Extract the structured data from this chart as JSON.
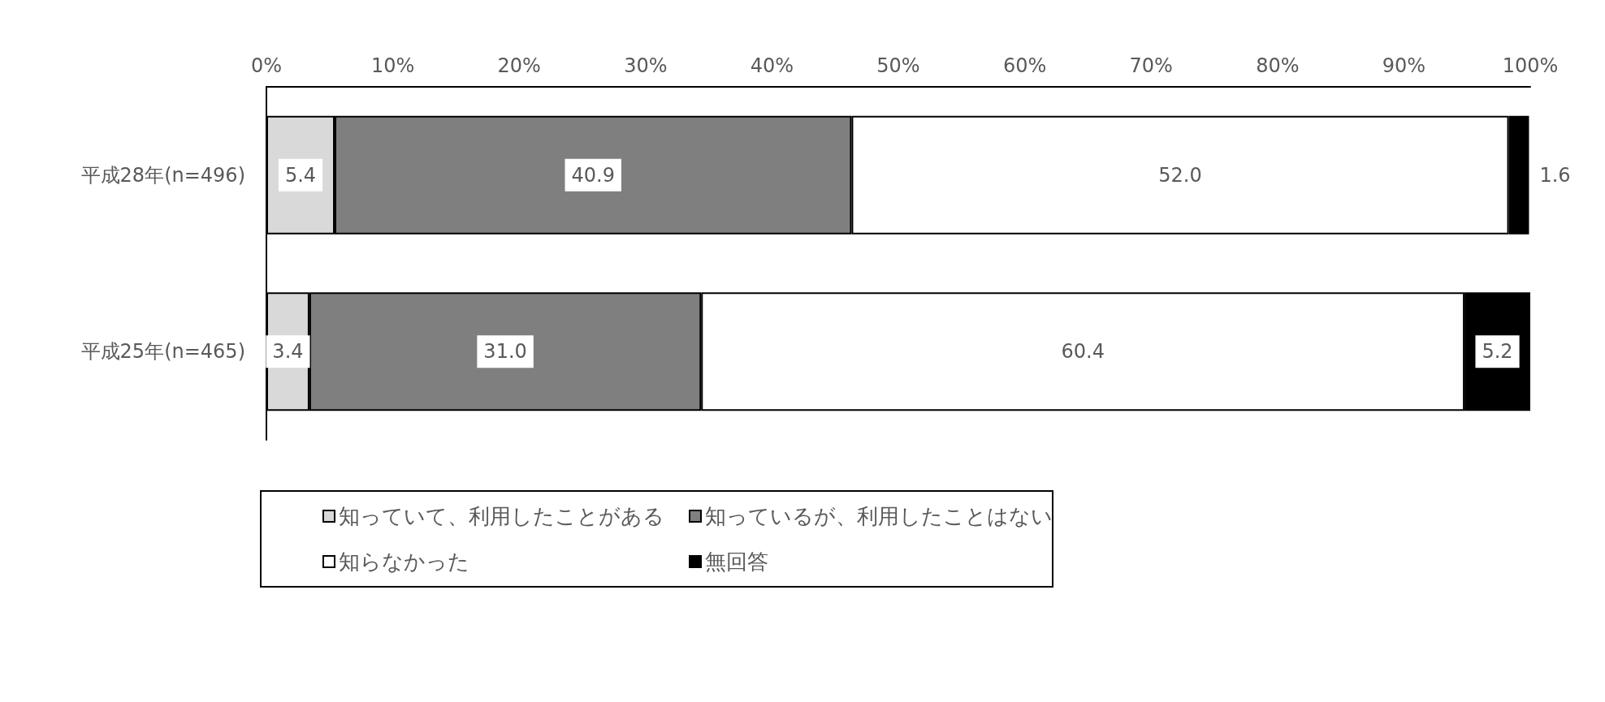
{
  "chart_data": {
    "type": "bar",
    "orientation": "horizontal",
    "stacked": true,
    "grid": false,
    "legend": "bottom",
    "categories": [
      "平成28年(n=496)",
      "平成25年(n=465)"
    ],
    "series": [
      {
        "name": "知っていて、利用したことがある",
        "color": "#d9d9d9",
        "values": [
          5.4,
          3.4
        ],
        "value_labels": [
          "5.4",
          "3.4"
        ]
      },
      {
        "name": "知っているが、利用したことはない",
        "color": "#7f7f7f",
        "values": [
          40.9,
          31.0
        ],
        "value_labels": [
          "40.9",
          "31.0"
        ]
      },
      {
        "name": "知らなかった",
        "color": "#ffffff",
        "values": [
          52.0,
          60.4
        ],
        "value_labels": [
          "52.0",
          "60.4"
        ]
      },
      {
        "name": "無回答",
        "color": "#000000",
        "values": [
          1.6,
          5.2
        ],
        "value_labels": [
          "1.6",
          "5.2"
        ]
      }
    ],
    "xlim": [
      0,
      100
    ],
    "xticks": [
      {
        "value": 0,
        "label": "0%"
      },
      {
        "value": 10,
        "label": "10%"
      },
      {
        "value": 20,
        "label": "20%"
      },
      {
        "value": 30,
        "label": "30%"
      },
      {
        "value": 40,
        "label": "40%"
      },
      {
        "value": 50,
        "label": "50%"
      },
      {
        "value": 60,
        "label": "60%"
      },
      {
        "value": 70,
        "label": "70%"
      },
      {
        "value": 80,
        "label": "80%"
      },
      {
        "value": 90,
        "label": "90%"
      },
      {
        "value": 100,
        "label": "100%"
      }
    ]
  }
}
